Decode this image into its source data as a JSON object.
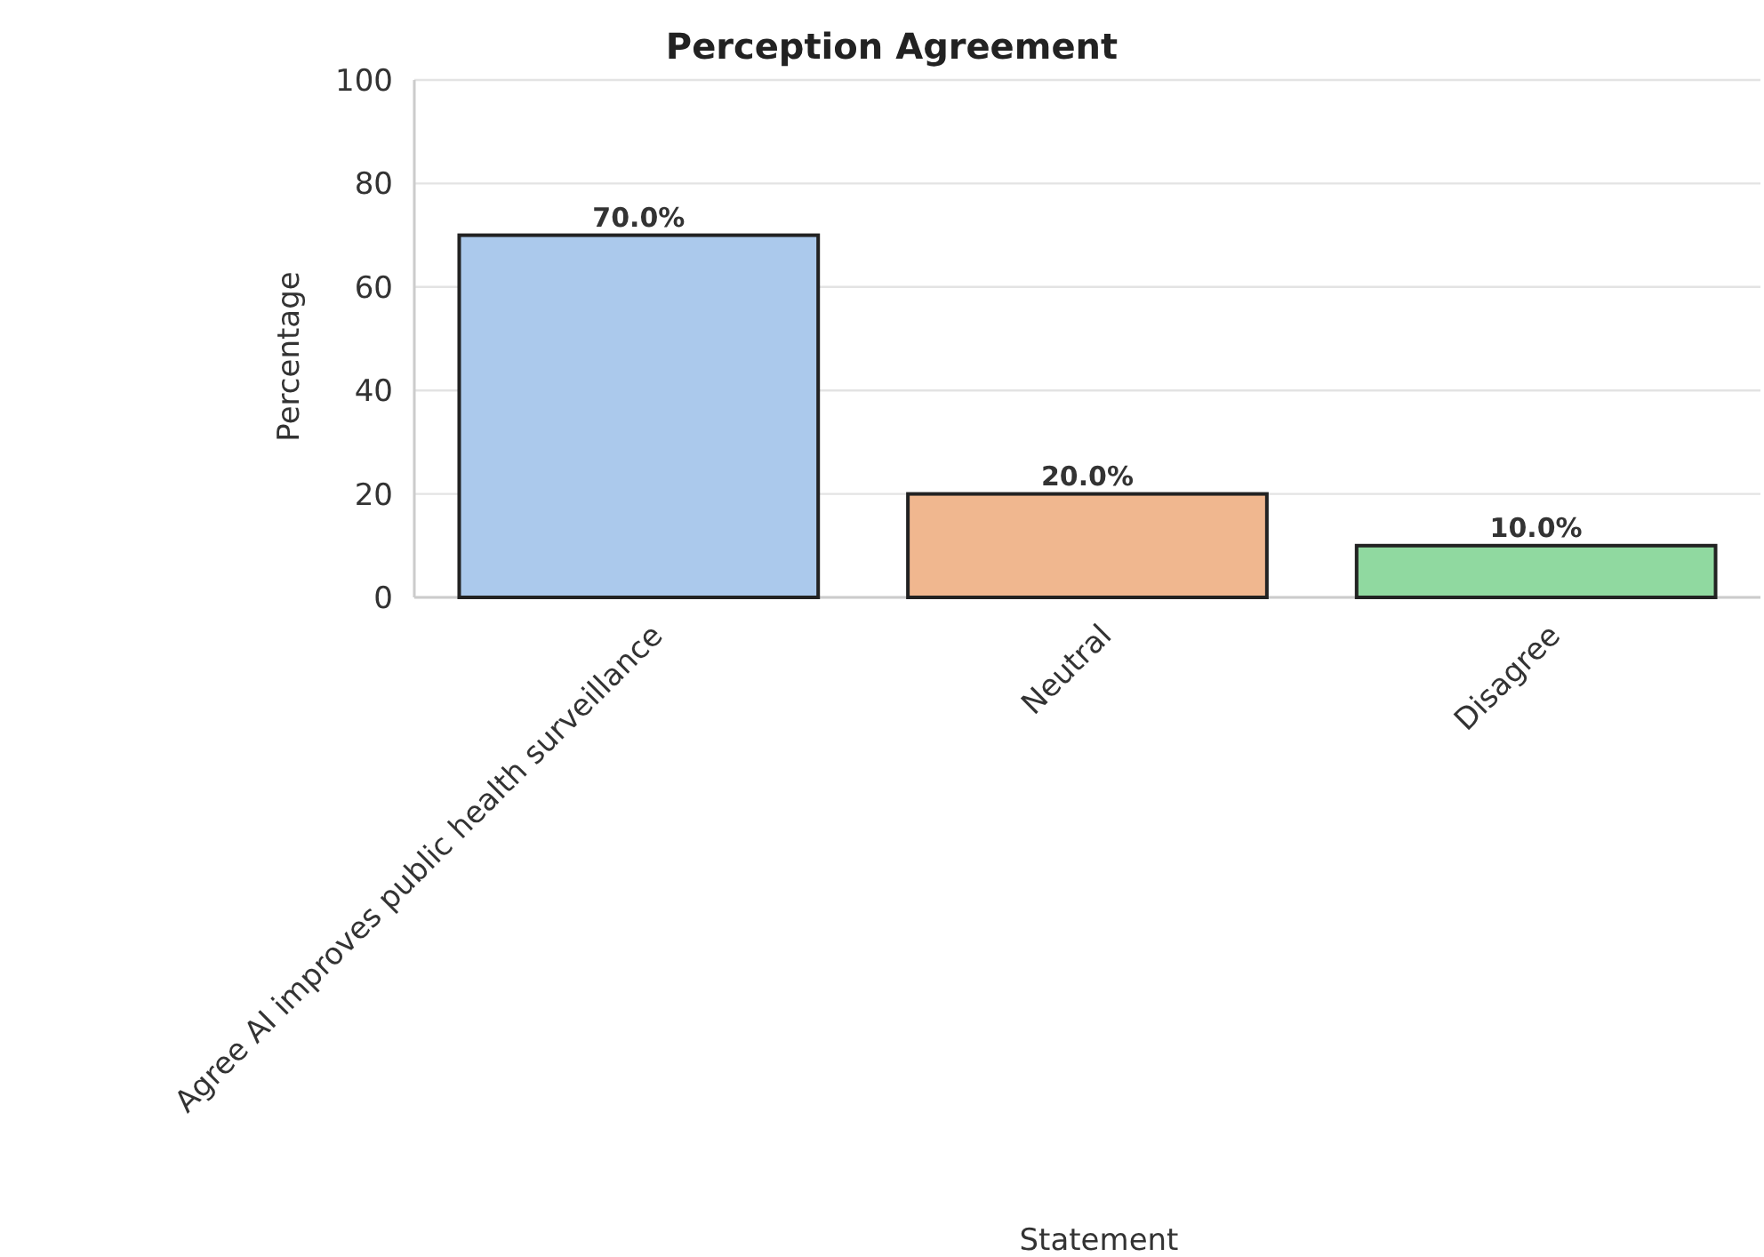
{
  "chart_data": {
    "type": "bar",
    "title": "Perception Agreement",
    "xlabel": "Statement",
    "ylabel": "Percentage",
    "categories": [
      "Agree AI improves public health surveillance",
      "Neutral",
      "Disagree"
    ],
    "values": [
      70,
      20,
      10
    ],
    "value_labels": [
      "70.0%",
      "20.0%",
      "10.0%"
    ],
    "colors": [
      "#abc9ec",
      "#f0b78f",
      "#90d9a0"
    ],
    "ylim": [
      0,
      100
    ],
    "yticks": [
      0,
      20,
      40,
      60,
      80,
      100
    ],
    "grid": "y"
  }
}
